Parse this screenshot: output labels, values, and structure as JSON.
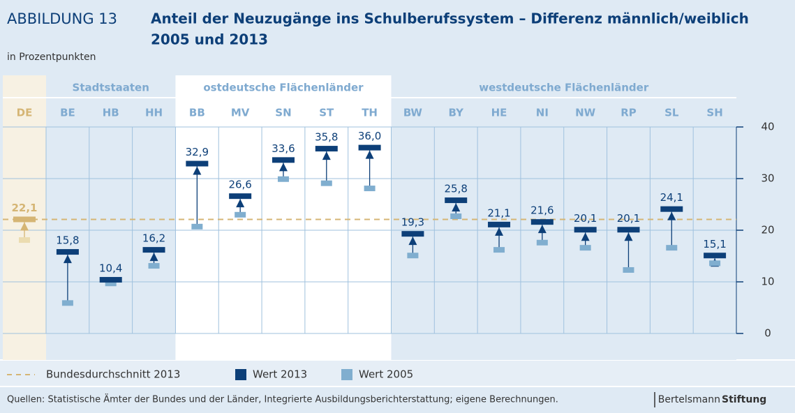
{
  "chart_data": {
    "type": "arrow_dot",
    "figure_label": "ABBILDUNG 13",
    "title": "Anteil der Neuzugänge ins Schulberufssystem – Differenz männlich/weiblich",
    "title_line2": "2005 und 2013",
    "subtitle": "in Prozentpunkten",
    "categories": [
      "DE",
      "BE",
      "HB",
      "HH",
      "BB",
      "MV",
      "SN",
      "ST",
      "TH",
      "BW",
      "BY",
      "HE",
      "NI",
      "NW",
      "RP",
      "SL",
      "SH"
    ],
    "groups": [
      {
        "name": "Stadtstaaten",
        "categories": [
          "BE",
          "HB",
          "HH"
        ]
      },
      {
        "name": "ostdeutsche Flächenländer",
        "categories": [
          "BB",
          "MV",
          "SN",
          "ST",
          "TH"
        ]
      },
      {
        "name": "westdeutsche Flächenländer",
        "categories": [
          "BW",
          "BY",
          "HE",
          "NI",
          "NW",
          "RP",
          "SL",
          "SH"
        ]
      }
    ],
    "highlight_category": "DE",
    "highlight_colors": [
      "#d5b574",
      "#ebdcb0"
    ],
    "series": [
      {
        "name": "Wert 2013",
        "color": "#0d3f78",
        "values": [
          22.1,
          15.8,
          10.4,
          16.2,
          32.9,
          26.6,
          33.6,
          35.8,
          36.0,
          19.3,
          25.8,
          21.1,
          21.6,
          20.1,
          20.1,
          24.1,
          15.1
        ],
        "value_labels": [
          "22,1",
          "15,8",
          "10,4",
          "16,2",
          "32,9",
          "26,6",
          "33,6",
          "35,8",
          "36,0",
          "19,3",
          "25,8",
          "21,1",
          "21,6",
          "20,1",
          "20,1",
          "24,1",
          "15,1"
        ]
      },
      {
        "name": "Wert 2005",
        "color": "#80aecf",
        "values": [
          18.1,
          5.9,
          9.7,
          13.1,
          20.7,
          23.0,
          29.9,
          29.1,
          28.1,
          15.1,
          22.7,
          16.2,
          17.6,
          16.6,
          12.3,
          16.6,
          13.6
        ]
      }
    ],
    "reference": {
      "name": "Bundesdurchschnitt 2013",
      "value": 22.1,
      "color": "#d5b574"
    },
    "ylim": [
      0,
      40
    ],
    "yticks": [
      0,
      10,
      20,
      30,
      40
    ],
    "grid": true,
    "source": "Quellen: Statistische Ämter der Bundes und der Länder, Integrierte Ausbildungsberichterstattung; eigene Berechnungen.",
    "logo": [
      "Bertelsmann",
      "Stiftung"
    ]
  }
}
